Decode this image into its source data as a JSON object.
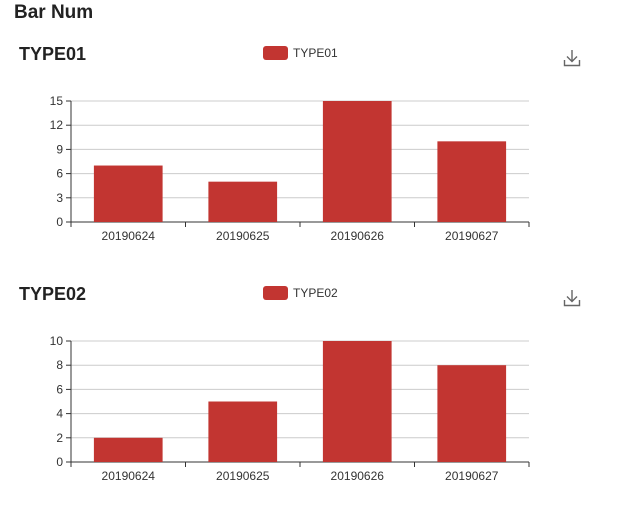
{
  "page": {
    "title": "Bar Num"
  },
  "icons": {
    "download": "download-icon"
  },
  "colors": {
    "bar": "#c23531",
    "grid": "#cccccc",
    "axis": "#333333"
  },
  "chart_data": [
    {
      "type": "bar",
      "title": "TYPE01",
      "legend": [
        "TYPE01"
      ],
      "legend_position": "top-center",
      "categories": [
        "20190624",
        "20190625",
        "20190626",
        "20190627"
      ],
      "series": [
        {
          "name": "TYPE01",
          "values": [
            7,
            5,
            15,
            10
          ]
        }
      ],
      "ylim": [
        0,
        15
      ],
      "yticks": [
        0,
        3,
        6,
        9,
        12,
        15
      ],
      "grid": true
    },
    {
      "type": "bar",
      "title": "TYPE02",
      "legend": [
        "TYPE02"
      ],
      "legend_position": "top-center",
      "categories": [
        "20190624",
        "20190625",
        "20190626",
        "20190627"
      ],
      "series": [
        {
          "name": "TYPE02",
          "values": [
            2,
            5,
            10,
            8
          ]
        }
      ],
      "ylim": [
        0,
        10
      ],
      "yticks": [
        0,
        2,
        4,
        6,
        8,
        10
      ],
      "grid": true
    }
  ]
}
